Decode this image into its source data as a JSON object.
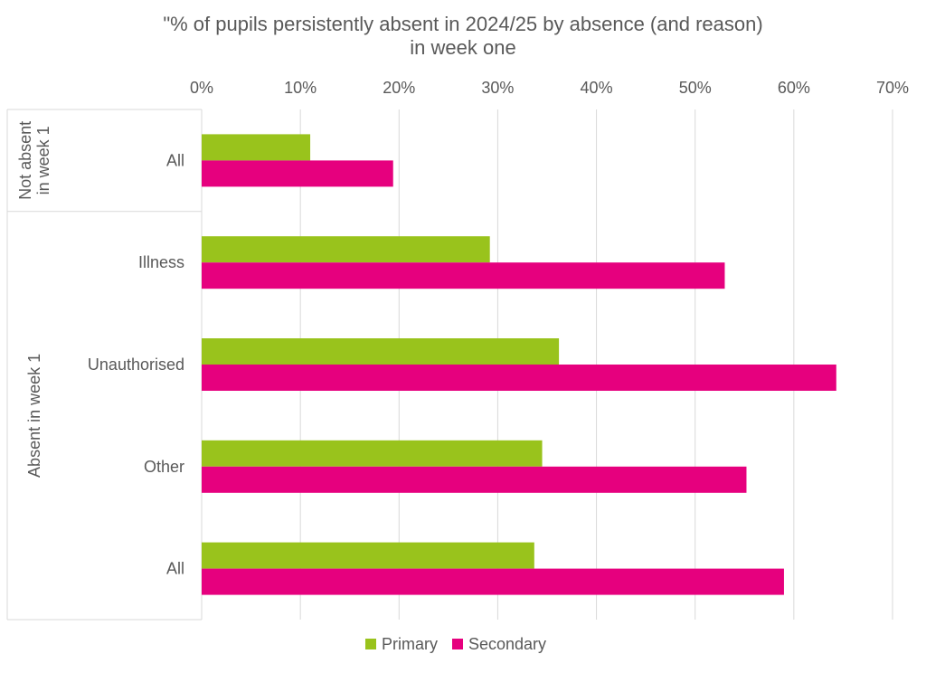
{
  "chart_data": {
    "type": "bar",
    "orientation": "horizontal",
    "title": "\"% of pupils persistently absent in 2024/25 by absence (and reason) in week one",
    "title_lines": [
      "\"% of pupils persistently absent in 2024/25 by absence (and reason)",
      "in week one"
    ],
    "xlim": [
      0,
      70
    ],
    "x_ticks": [
      0,
      10,
      20,
      30,
      40,
      50,
      60,
      70
    ],
    "x_tick_labels": [
      "0%",
      "10%",
      "20%",
      "30%",
      "40%",
      "50%",
      "60%",
      "70%"
    ],
    "x_axis_position": "top",
    "grid": true,
    "legend_position": "bottom",
    "groups": [
      {
        "label_lines": [
          "Not absent",
          "in week 1"
        ],
        "categories": [
          "All"
        ]
      },
      {
        "label_lines": [
          "Absent in week 1"
        ],
        "categories": [
          "Illness",
          "Unauthorised",
          "Other",
          "All"
        ]
      }
    ],
    "categories": [
      "All",
      "Illness",
      "Unauthorised",
      "Other",
      "All"
    ],
    "series": [
      {
        "name": "Primary",
        "color": "#99c31c",
        "values": [
          11,
          29.2,
          36.2,
          34.5,
          33.7
        ]
      },
      {
        "name": "Secondary",
        "color": "#e6007e",
        "values": [
          19.4,
          53,
          64.3,
          55.2,
          59
        ]
      }
    ]
  }
}
